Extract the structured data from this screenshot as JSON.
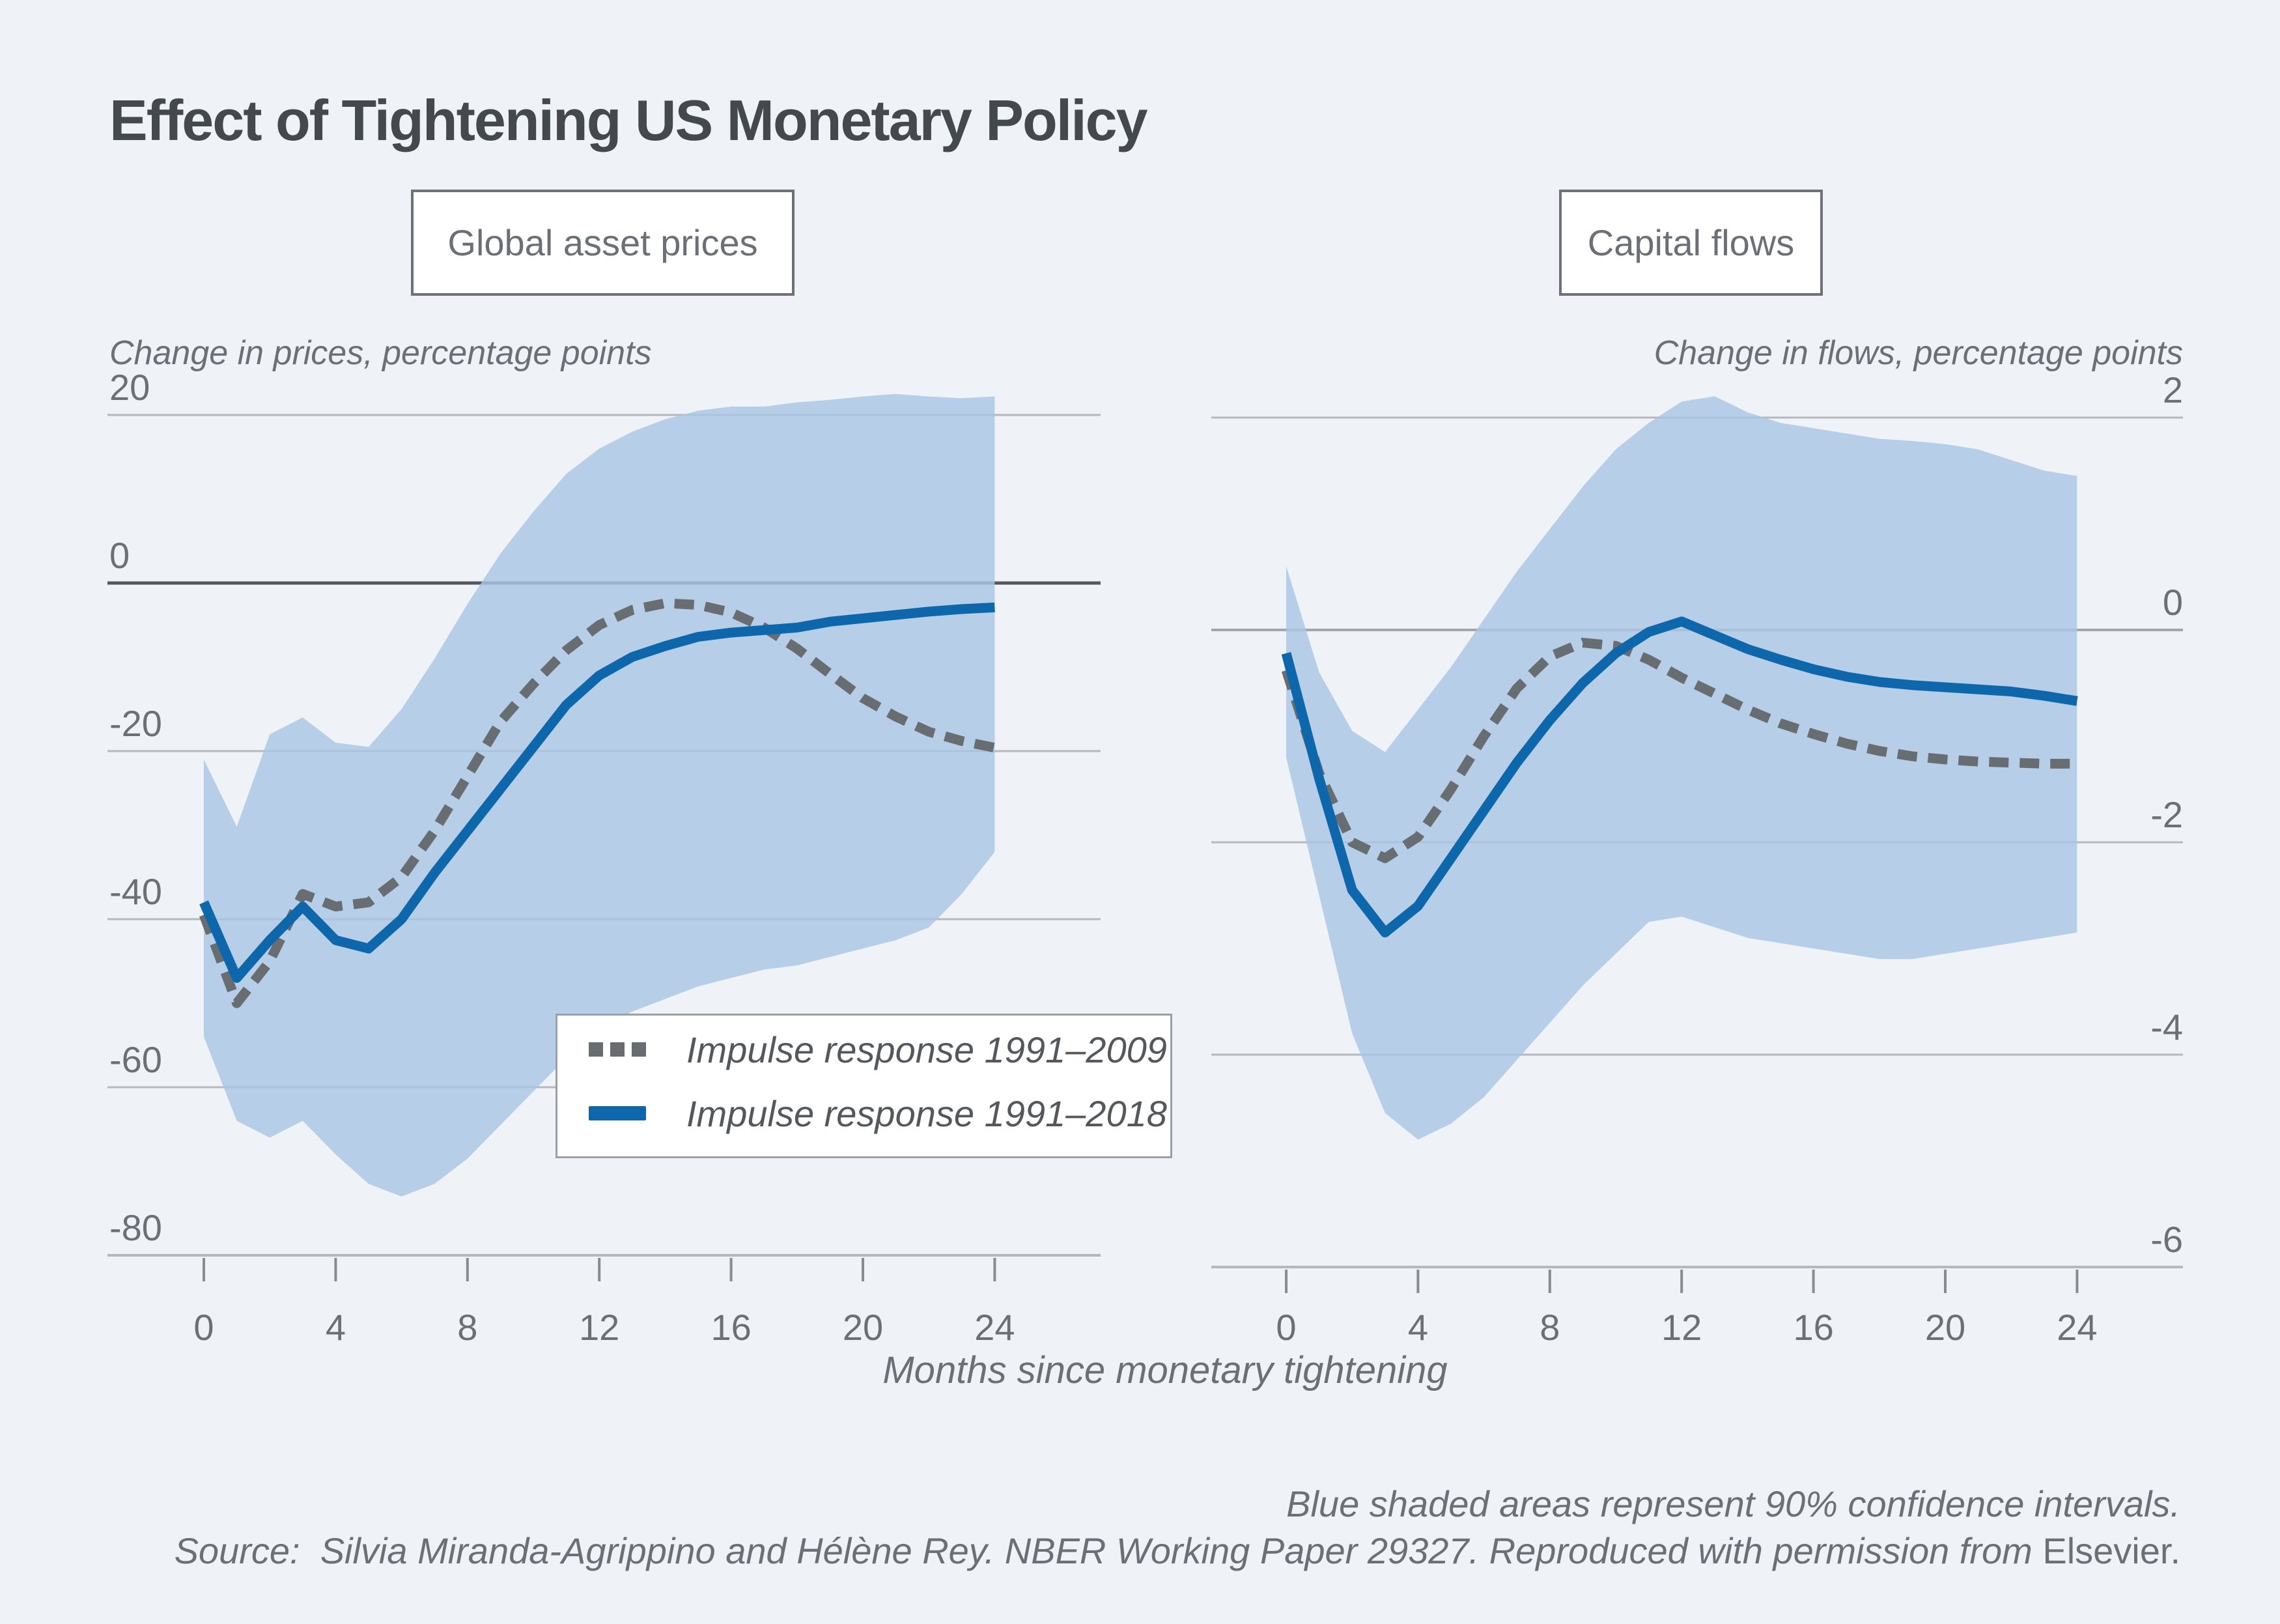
{
  "title": "Effect of Tightening US Monetary Policy",
  "x_axis_label": "Months since monetary tightening",
  "panels": [
    {
      "box_label": "Global asset prices",
      "caption": "Change in prices, percentage points"
    },
    {
      "box_label": "Capital flows",
      "caption": "Change in flows, percentage points"
    }
  ],
  "legend": {
    "items": [
      {
        "label": "Impulse response 1991–2009",
        "style": "dashed",
        "color": "#686d72"
      },
      {
        "label": "Impulse response 1991–2018",
        "style": "solid",
        "color": "#0f67ab"
      }
    ]
  },
  "footnotes": {
    "note": "Blue shaded areas represent 90% confidence intervals.",
    "source_italic": "Source:  Silvia Miranda-Agrippino and Hélène Rey. NBER Working Paper 29327. Reproduced with permission from ",
    "source_upright": "Elsevier."
  },
  "colors": {
    "background": "#eff3f7",
    "band_fill": "#a9c6e3",
    "series_2009": "#686d72",
    "series_2018": "#0f67ab",
    "gridline": "#b5b8bc",
    "zero_line_dark": "#54585d",
    "zero_line_right": "#a3a7ac",
    "axis_tick": "#878c92",
    "title_text": "#44494e",
    "label_text": "#6b7076"
  },
  "chart_data": [
    {
      "type": "line",
      "title": "Global asset prices",
      "xlabel": "Months since monetary tightening",
      "ylabel": "Change in prices, percentage points",
      "grid": true,
      "legend_position": "inside-bottom-left-box",
      "xlim": [
        0,
        24
      ],
      "ylim": [
        -80,
        20
      ],
      "xticks": [
        0,
        4,
        8,
        12,
        16,
        20,
        24
      ],
      "yticks": [
        20,
        0,
        -20,
        -40,
        -60,
        -80
      ],
      "months": [
        0,
        1,
        2,
        3,
        4,
        5,
        6,
        7,
        8,
        9,
        10,
        11,
        12,
        13,
        14,
        15,
        16,
        17,
        18,
        19,
        20,
        21,
        22,
        23,
        24
      ],
      "series": [
        {
          "name": "Impulse response 1991–2009",
          "values": [
            -39.5,
            -50,
            -45,
            -37,
            -38.5,
            -38,
            -35,
            -29.5,
            -23,
            -16.5,
            -12,
            -8,
            -5,
            -3.2,
            -2.4,
            -2.6,
            -3.5,
            -5.3,
            -7.8,
            -10.8,
            -13.7,
            -15.9,
            -17.7,
            -18.8,
            -19.6
          ]
        },
        {
          "name": "Impulse response 1991–2018",
          "values": [
            -38,
            -47,
            -42.5,
            -38.5,
            -42.5,
            -43.5,
            -40,
            -34.5,
            -29.5,
            -24.5,
            -19.5,
            -14.5,
            -11,
            -8.8,
            -7.5,
            -6.4,
            -5.9,
            -5.6,
            -5.3,
            -4.6,
            -4.2,
            -3.8,
            -3.4,
            -3.1,
            -2.9
          ]
        }
      ],
      "band_90ci": {
        "upper": [
          -21,
          -29,
          -18,
          -16,
          -19,
          -19.5,
          -15,
          -9,
          -2.5,
          3.5,
          8.5,
          13,
          16,
          18,
          19.5,
          20.5,
          21,
          21,
          21.5,
          21.8,
          22.2,
          22.5,
          22.2,
          22,
          22.2
        ],
        "lower": [
          -54,
          -64,
          -66,
          -64,
          -68,
          -71.5,
          -73,
          -71.5,
          -68.5,
          -64.5,
          -60.5,
          -56.5,
          -53,
          -51,
          -49.5,
          -48,
          -47,
          -46,
          -45.5,
          -44.5,
          -43.5,
          -42.5,
          -41,
          -37,
          -32
        ]
      }
    },
    {
      "type": "line",
      "title": "Capital flows",
      "xlabel": "Months since monetary tightening",
      "ylabel": "Change in flows, percentage points",
      "grid": true,
      "legend_position": "none",
      "xlim": [
        0,
        24
      ],
      "ylim": [
        -6,
        2
      ],
      "xticks": [
        0,
        4,
        8,
        12,
        16,
        20,
        24
      ],
      "yticks": [
        2,
        0,
        -2,
        -4,
        -6
      ],
      "months": [
        0,
        1,
        2,
        3,
        4,
        5,
        6,
        7,
        8,
        9,
        10,
        11,
        12,
        13,
        14,
        15,
        16,
        17,
        18,
        19,
        20,
        21,
        22,
        23,
        24
      ],
      "series": [
        {
          "name": "Impulse response 1991–2009",
          "values": [
            -0.38,
            -1.35,
            -2.0,
            -2.15,
            -1.95,
            -1.5,
            -1.0,
            -0.55,
            -0.25,
            -0.12,
            -0.15,
            -0.28,
            -0.45,
            -0.6,
            -0.75,
            -0.88,
            -0.98,
            -1.07,
            -1.14,
            -1.19,
            -1.22,
            -1.24,
            -1.25,
            -1.26,
            -1.26
          ]
        },
        {
          "name": "Impulse response 1991–2018",
          "values": [
            -0.22,
            -1.4,
            -2.45,
            -2.85,
            -2.6,
            -2.15,
            -1.7,
            -1.25,
            -0.85,
            -0.5,
            -0.22,
            -0.02,
            0.08,
            -0.05,
            -0.18,
            -0.28,
            -0.37,
            -0.44,
            -0.49,
            -0.52,
            -0.54,
            -0.56,
            -0.58,
            -0.62,
            -0.67
          ]
        }
      ],
      "band_90ci": {
        "upper": [
          0.6,
          -0.4,
          -0.95,
          -1.15,
          -0.75,
          -0.35,
          0.1,
          0.55,
          0.95,
          1.35,
          1.7,
          1.95,
          2.15,
          2.2,
          2.05,
          1.95,
          1.9,
          1.85,
          1.8,
          1.78,
          1.75,
          1.7,
          1.6,
          1.5,
          1.45
        ],
        "lower": [
          -1.2,
          -2.5,
          -3.8,
          -4.55,
          -4.8,
          -4.65,
          -4.4,
          -4.05,
          -3.7,
          -3.35,
          -3.05,
          -2.75,
          -2.7,
          -2.8,
          -2.9,
          -2.95,
          -3.0,
          -3.05,
          -3.1,
          -3.1,
          -3.05,
          -3.0,
          -2.95,
          -2.9,
          -2.85
        ]
      }
    }
  ]
}
